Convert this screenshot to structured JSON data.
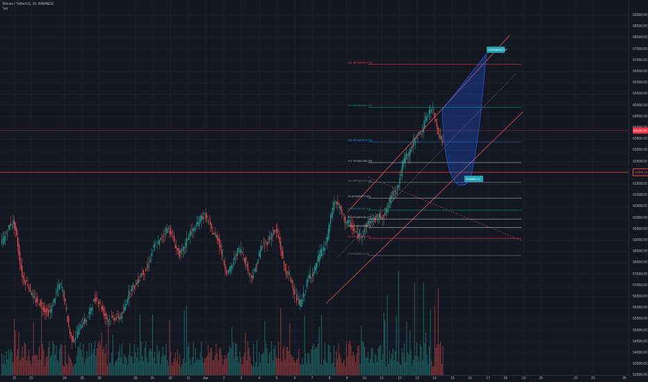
{
  "header": {
    "symbol": "Bitcoin / TetherUS, 2h, BINANCE",
    "study": "Vol"
  },
  "settings_icon": "gear-icon",
  "colors": {
    "background": "#131722",
    "up": "#26a69a",
    "down": "#ef5350",
    "grid": "#1e222d",
    "channel": "#ef5350",
    "fib": "#b2b5be",
    "projection_fill": "#2962ff",
    "target": "#22a3b8"
  },
  "price_scale": {
    "labels": [
      "69000.00",
      "68500.00",
      "68000.00",
      "67500.00",
      "67000.00",
      "66500.00",
      "66000.00",
      "65500.00",
      "65000.00",
      "64500.00",
      "64000.00",
      "63500.00",
      "63000.00",
      "62500.00",
      "62000.00",
      "61500.00",
      "61000.00",
      "60500.00",
      "60000.00",
      "59500.00",
      "59000.00",
      "58500.00",
      "58000.00",
      "57500.00",
      "57000.00",
      "56500.00",
      "56000.00",
      "55500.00",
      "55000.00",
      "54500.00",
      "54000.00",
      "53500.00",
      "53000.00",
      "52500.00"
    ],
    "current_price": "63194.04",
    "marked_price": "61506.29"
  },
  "time_axis": {
    "labels": [
      "21",
      "22",
      "24",
      "25",
      "26",
      "28",
      "29",
      "30",
      "31",
      "Apr",
      "2",
      "3",
      "4",
      "5",
      "6",
      "7",
      "8",
      "9",
      "10",
      "11",
      "12",
      "13",
      "14",
      "15",
      "16",
      "17",
      "18",
      "19",
      "20",
      "22",
      "23",
      "25"
    ]
  },
  "fib_levels": [
    {
      "label": "261.80%(66824.75)",
      "price": 66824.75,
      "color": "#f23645"
    },
    {
      "label": "220.00%(64915.43)",
      "price": 64915.43,
      "color": "#089981"
    },
    {
      "label": "161.80%(63379.05)",
      "price": 63379.05,
      "color": "#2196f3"
    },
    {
      "label": "127.20%(62455.36)",
      "price": 62455.36,
      "color": "#b2b5be"
    },
    {
      "label": "100.00%(61572.30)",
      "price": 61572.3,
      "color": "#787b86"
    },
    {
      "label": "78.60%(60877.68)",
      "price": 60877.68,
      "color": "#b2b5be"
    },
    {
      "label": "61.80%(60331.43)",
      "price": 60331.43,
      "color": "#089981"
    },
    {
      "label": "50.00%(59948.17)",
      "price": 59948.17,
      "color": "#b2b5be"
    },
    {
      "label": "38.20%(59564.90)",
      "price": 59564.9,
      "color": "#b2b5be"
    },
    {
      "label": "23.60%(59090.29)",
      "price": 59090.29,
      "color": "#f23645"
    },
    {
      "label": "0.00%(58324.04)",
      "price": 58324.04,
      "color": "#787b86"
    }
  ],
  "targets": {
    "upper": "ADSB8083.757",
    "lower": "4358880.07"
  },
  "chart_data": {
    "type": "candlestick",
    "symbol": "Bitcoin / TetherUS",
    "interval": "2h",
    "exchange": "BINANCE",
    "ylim": [
      52200,
      69300
    ],
    "keypoints": [
      {
        "date": "Mar 21",
        "price": 58900
      },
      {
        "date": "Mar 21",
        "price": 59800
      },
      {
        "date": "Mar 22",
        "price": 57200
      },
      {
        "date": "Mar 23",
        "price": 56300
      },
      {
        "date": "Mar 24",
        "price": 55800
      },
      {
        "date": "Mar 25",
        "price": 57000
      },
      {
        "date": "Mar 26",
        "price": 54600
      },
      {
        "date": "Mar 26",
        "price": 55400
      },
      {
        "date": "Mar 27",
        "price": 56400
      },
      {
        "date": "Mar 28",
        "price": 55500
      },
      {
        "date": "Mar 29",
        "price": 55600
      },
      {
        "date": "Mar 29",
        "price": 56900
      },
      {
        "date": "Mar 30",
        "price": 57600
      },
      {
        "date": "Mar 31",
        "price": 58800
      },
      {
        "date": "Mar 31",
        "price": 59500
      },
      {
        "date": "Apr 1",
        "price": 58400
      },
      {
        "date": "Apr 2",
        "price": 59400
      },
      {
        "date": "Apr 3",
        "price": 60100
      },
      {
        "date": "Apr 3",
        "price": 59200
      },
      {
        "date": "Apr 4",
        "price": 57600
      },
      {
        "date": "Apr 5",
        "price": 58600
      },
      {
        "date": "Apr 6",
        "price": 57400
      },
      {
        "date": "Apr 7",
        "price": 58800
      },
      {
        "date": "Apr 7",
        "price": 59400
      },
      {
        "date": "Apr 8",
        "price": 57500
      },
      {
        "date": "Apr 8",
        "price": 56200
      },
      {
        "date": "Apr 9",
        "price": 57500
      },
      {
        "date": "Apr 10",
        "price": 58600
      },
      {
        "date": "Apr 10",
        "price": 60700
      },
      {
        "date": "Apr 11",
        "price": 59800
      },
      {
        "date": "Apr 11",
        "price": 59200
      },
      {
        "date": "Apr 12",
        "price": 59900
      },
      {
        "date": "Apr 13",
        "price": 60100
      },
      {
        "date": "Apr 13",
        "price": 61200
      },
      {
        "date": "Apr 13",
        "price": 62800
      },
      {
        "date": "Apr 14",
        "price": 63700
      },
      {
        "date": "Apr 14",
        "price": 64800
      },
      {
        "date": "Apr 14",
        "price": 63400
      }
    ],
    "projection": {
      "from_price": 64800,
      "dip_price": 61500,
      "target_price": 67300
    }
  }
}
